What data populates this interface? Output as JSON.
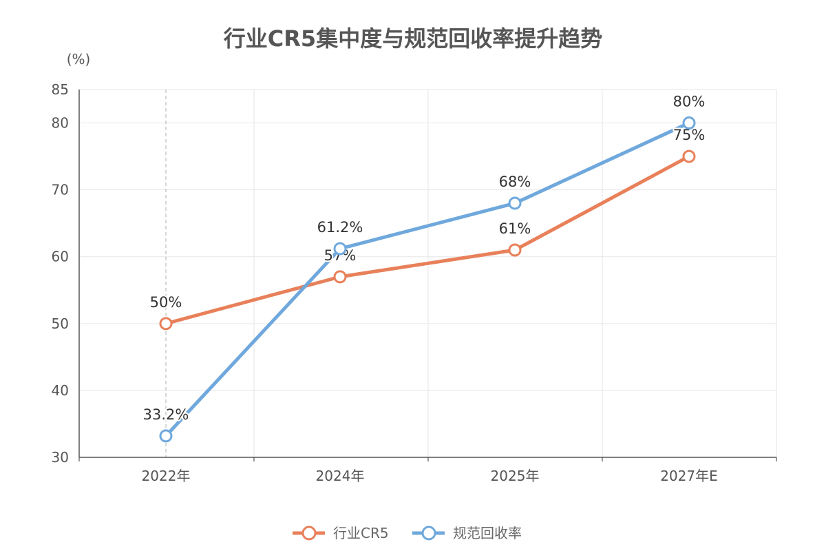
{
  "chart_data": {
    "type": "line",
    "title": "行业CR5集中度与规范回收率提升趋势",
    "unit_label": "(%)",
    "categories": [
      "2022年",
      "2024年",
      "2025年",
      "2027年E"
    ],
    "ylim": [
      30,
      85
    ],
    "yticks": [
      30,
      40,
      50,
      60,
      70,
      80,
      85
    ],
    "grid": true,
    "legend_position": "bottom",
    "series": [
      {
        "name": "行业CR5",
        "color": "#E8805A",
        "values": [
          50,
          57,
          61,
          75
        ],
        "labels": [
          "50%",
          "57%",
          "61%",
          "75%"
        ]
      },
      {
        "name": "规范回收率",
        "color": "#6FA8DC",
        "values": [
          33.2,
          61.2,
          68,
          80
        ],
        "labels": [
          "33.2%",
          "61.2%",
          "68%",
          "80%"
        ]
      }
    ]
  }
}
